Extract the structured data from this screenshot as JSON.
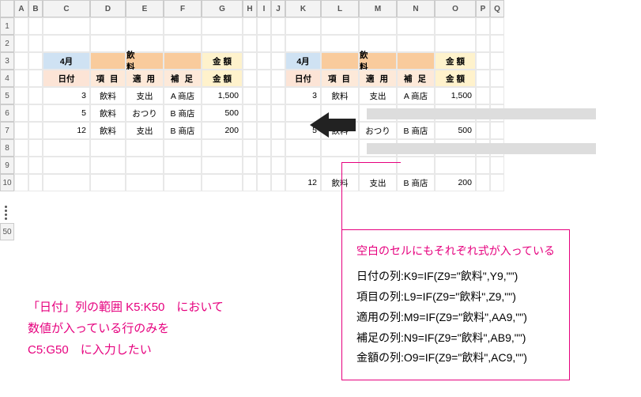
{
  "cols": [
    "A",
    "B",
    "C",
    "D",
    "E",
    "F",
    "G",
    "H",
    "I",
    "J",
    "K",
    "L",
    "M",
    "N",
    "O",
    "P",
    "Q"
  ],
  "rows": [
    "1",
    "2",
    "3",
    "4",
    "5",
    "6",
    "7",
    "8",
    "9",
    "10"
  ],
  "row50": "50",
  "left": {
    "month": "4月",
    "drink_merged": "飲　料",
    "amount": "金 額",
    "sub": {
      "date": "日付",
      "item": "項 目",
      "apply": "適 用",
      "supp": "補 足",
      "amount": "金 額"
    },
    "data": [
      {
        "d": "3",
        "i": "飲料",
        "a": "支出",
        "s": "A 商店",
        "m": "1,500"
      },
      {
        "d": "5",
        "i": "飲料",
        "a": "おつり",
        "s": "B 商店",
        "m": "500"
      },
      {
        "d": "12",
        "i": "飲料",
        "a": "支出",
        "s": "B 商店",
        "m": "200"
      }
    ]
  },
  "right": {
    "month": "4月",
    "drink_merged": "飲　料",
    "amount": "金 額",
    "sub": {
      "date": "日付",
      "item": "項 目",
      "apply": "適 用",
      "supp": "補 足",
      "amount": "金 額"
    },
    "data": [
      {
        "d": "3",
        "i": "飲料",
        "a": "支出",
        "s": "A 商店",
        "m": "1,500"
      },
      {
        "d": "5",
        "i": "飲料",
        "a": "おつり",
        "s": "B 商店",
        "m": "500"
      },
      {
        "d": "12",
        "i": "飲料",
        "a": "支出",
        "s": "B 商店",
        "m": "200"
      }
    ]
  },
  "note_left": {
    "l1": "「日付」列の範囲 K5:K50　において",
    "l2": "数値が入っている行のみを",
    "l3": "C5:G50　に入力したい"
  },
  "note_box": {
    "title": "空白のセルにもそれぞれ式が入っている",
    "l1": "日付の列:K9=IF(Z9=\"飲料\",Y9,\"\")",
    "l2": "項目の列:L9=IF(Z9=\"飲料\",Z9,\"\")",
    "l3": "適用の列:M9=IF(Z9=\"飲料\",AA9,\"\")",
    "l4": "補足の列:N9=IF(Z9=\"飲料\",AB9,\"\")",
    "l5": "金額の列:O9=IF(Z9=\"飲料\",AC9,\"\")"
  }
}
